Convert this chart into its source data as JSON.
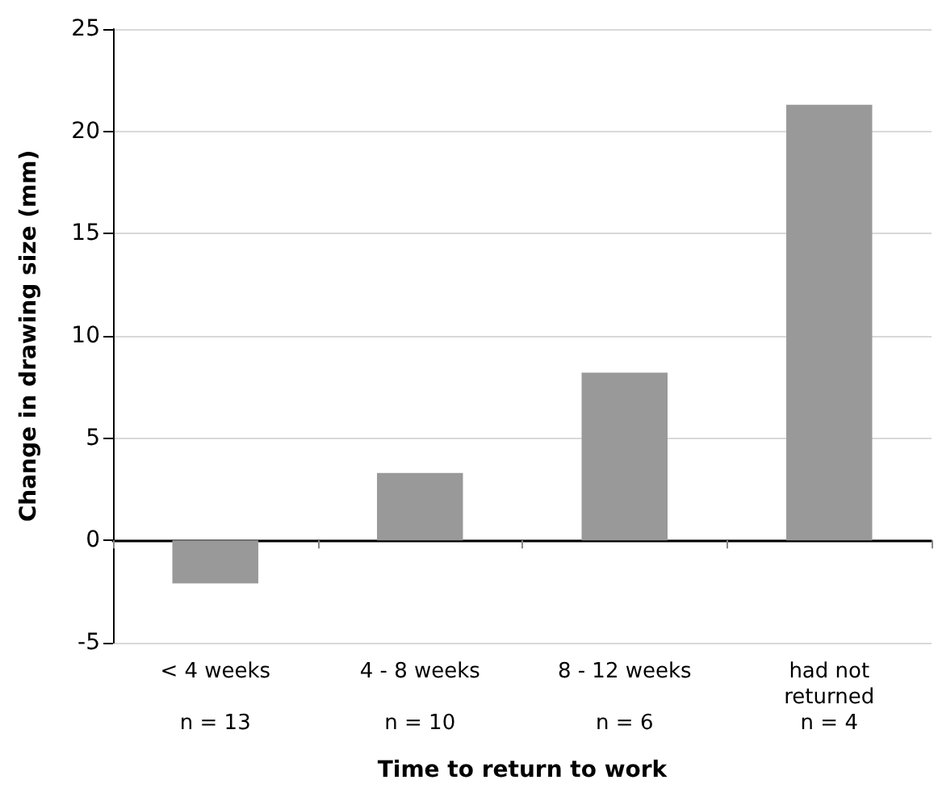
{
  "chart_data": {
    "type": "bar",
    "xlabel": "Time to return to work",
    "ylabel": "Change in drawing size (mm)",
    "categories": [
      "< 4 weeks\n\nn = 13",
      "4 - 8 weeks\n\nn = 10",
      "8 - 12 weeks\n\nn = 6",
      "had not\nreturned\nn = 4"
    ],
    "values": [
      -2.1,
      3.3,
      8.2,
      21.3
    ],
    "color": "#999999",
    "ylim": [
      -5,
      25
    ],
    "yticks": [
      -5,
      0,
      5,
      10,
      15,
      20,
      25
    ],
    "grid": "y"
  }
}
